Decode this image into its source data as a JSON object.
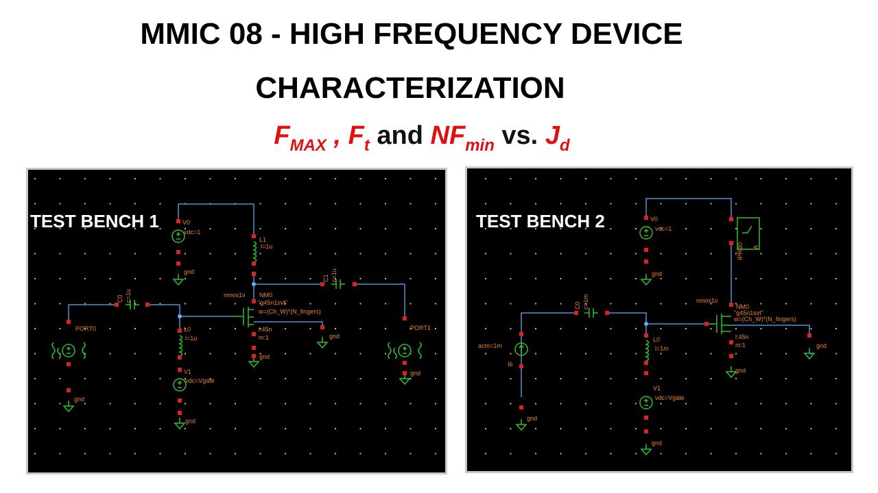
{
  "title": {
    "line1": "MMIC 08 - HIGH FREQUENCY DEVICE",
    "line2": "CHARACTERIZATION"
  },
  "subtitle": [
    "F",
    "MAX",
    " , ",
    "F",
    "t",
    " and ",
    "NF",
    "min",
    " vs. ",
    "J",
    "d"
  ],
  "bench1": {
    "heading": "TEST BENCH 1",
    "labels": [
      "V0",
      "vdc=1",
      "gnd",
      "L1",
      "l=1u",
      "C1",
      "c=1u",
      "C0",
      "c=1u",
      "nmos1v",
      "NM0",
      "\"g45n1svt\"",
      "w=(Ch_W)*(N_fingers)",
      "l:45n",
      "m:1",
      "gnd",
      "gnd",
      "PORT0",
      "PORT1",
      "L0",
      "l=1u",
      "V1",
      "vdc=Vgate",
      "gnd",
      "gnd",
      "gnd"
    ]
  },
  "bench2": {
    "heading": "TEST BENCH 2",
    "labels": [
      "V0",
      "vdc=1",
      "gnd",
      "IPRB0",
      "A",
      "C0",
      "c=1m",
      "acm=1m",
      "I6",
      "L0",
      "l=1m",
      "V1",
      "vdc=Vgate",
      "gnd",
      "gnd",
      "nmos1v",
      "NM0",
      "\"g45n1svt\"",
      "w=(Ch_W)*(N_fingers)",
      "l:45n",
      "m:1",
      "gnd",
      "gnd"
    ]
  }
}
